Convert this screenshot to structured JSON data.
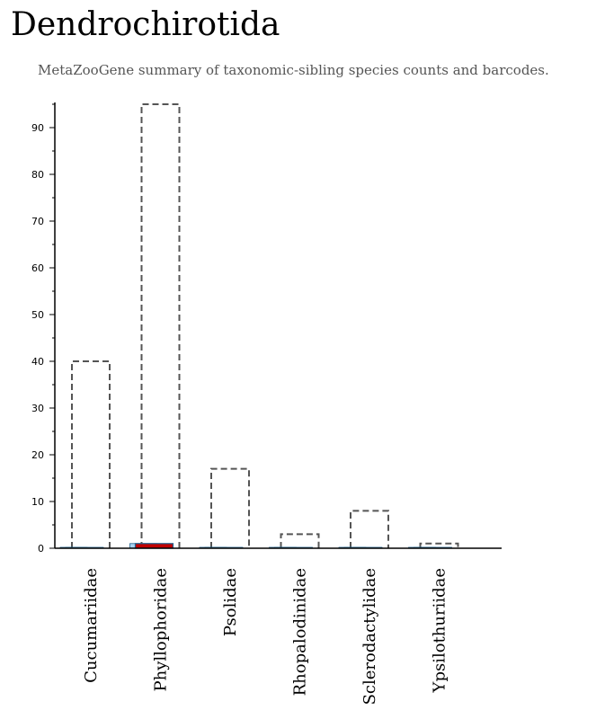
{
  "page": {
    "title": "Dendrochirotida",
    "subtitle": "MetaZooGene summary of taxonomic-sibling species counts and barcodes."
  },
  "colors": {
    "species_outline": "#555555",
    "barcode_fill_light": "#a9d2f0",
    "barcode_fill_dark": "#c00000",
    "barcode_outline": "#1f5f8b",
    "axis": "#000000"
  },
  "chart_data": {
    "type": "bar",
    "title": "",
    "xlabel": "",
    "ylabel": "",
    "ylim": [
      0,
      96
    ],
    "yticks_major": [
      0,
      10,
      20,
      30,
      40,
      50,
      60,
      70,
      80,
      90
    ],
    "ytick_minor_step": 5,
    "grid": false,
    "categories": [
      "Cucumariidae",
      "Phyllophoridae",
      "Psolidae",
      "Rhopalodinidae",
      "Sclerodactylidae",
      "Ypsilothuriidae"
    ],
    "series": [
      {
        "values": [
          40,
          95,
          17,
          3,
          8,
          1
        ],
        "style": "dashed-outline"
      },
      {
        "values": [
          0,
          1,
          0,
          0,
          0,
          0
        ],
        "style": "light-blue-fill"
      },
      {
        "values": [
          0,
          1,
          0,
          0,
          0,
          0
        ],
        "style": "red-fill"
      }
    ]
  }
}
